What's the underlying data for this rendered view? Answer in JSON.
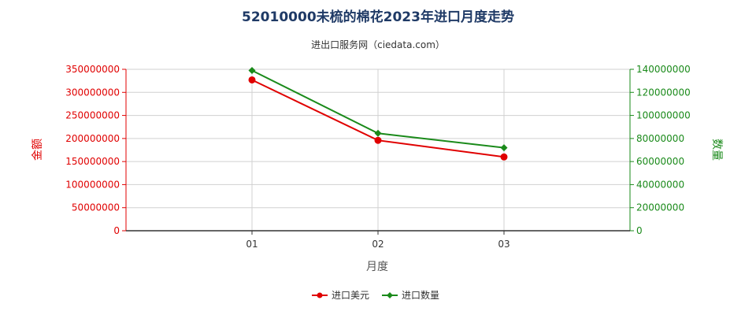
{
  "chart_data": {
    "type": "line",
    "title": "52010000未梳的棉花2023年进口月度走势",
    "subtitle": "进出口服务网（ciedata.com）",
    "xlabel": "月度",
    "ylabel_left": "金额",
    "ylabel_right": "数量",
    "x": [
      "01",
      "02",
      "03"
    ],
    "ylim_left": [
      0,
      350000000
    ],
    "ylim_right": [
      0,
      140000000
    ],
    "yticks_left": [
      "0",
      "50000000",
      "100000000",
      "150000000",
      "200000000",
      "250000000",
      "300000000",
      "350000000"
    ],
    "yticks_right": [
      "0",
      "20000000",
      "40000000",
      "60000000",
      "80000000",
      "100000000",
      "120000000",
      "140000000"
    ],
    "grid": true,
    "legend_position": "bottom",
    "series": [
      {
        "name": "进口美元",
        "axis": "left",
        "color": "#e00000",
        "marker": "circle",
        "values": [
          327000000,
          196000000,
          160000000
        ]
      },
      {
        "name": "进口数量",
        "axis": "right",
        "color": "#1a8a1a",
        "marker": "diamond",
        "values": [
          139000000,
          84500000,
          72000000
        ]
      }
    ]
  }
}
